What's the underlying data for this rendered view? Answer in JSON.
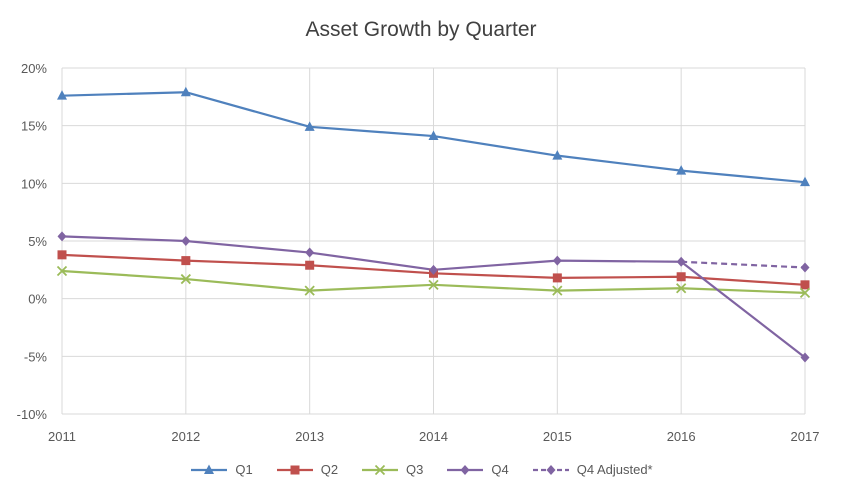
{
  "chart_data": {
    "type": "line",
    "title": "Asset Growth by Quarter",
    "x": [
      "2011",
      "2012",
      "2013",
      "2014",
      "2015",
      "2016",
      "2017"
    ],
    "y_ticks": [
      "20%",
      "15%",
      "10%",
      "5%",
      "0%",
      "-5%",
      "-10%"
    ],
    "ylim": [
      -10,
      20
    ],
    "y_unit": "%",
    "grid": "horizontal and vertical",
    "legend_position": "bottom",
    "series": [
      {
        "name": "Q1",
        "color": "#4F81BD",
        "marker": "triangle",
        "dashed": false,
        "values": [
          17.6,
          17.9,
          14.9,
          14.1,
          12.4,
          11.1,
          10.1
        ]
      },
      {
        "name": "Q2",
        "color": "#C0504D",
        "marker": "square",
        "dashed": false,
        "values": [
          3.8,
          3.3,
          2.9,
          2.2,
          1.8,
          1.9,
          1.2
        ]
      },
      {
        "name": "Q3",
        "color": "#9BBB59",
        "marker": "x",
        "dashed": false,
        "values": [
          2.4,
          1.7,
          0.7,
          1.2,
          0.7,
          0.9,
          0.5
        ]
      },
      {
        "name": "Q4",
        "color": "#8064A2",
        "marker": "diamond",
        "dashed": false,
        "values": [
          5.4,
          5.0,
          4.0,
          2.5,
          3.3,
          3.2,
          -5.1
        ]
      },
      {
        "name": "Q4 Adjusted*",
        "color": "#8064A2",
        "marker": "diamond",
        "dashed": true,
        "values": [
          null,
          null,
          null,
          null,
          null,
          3.2,
          2.7
        ]
      }
    ]
  }
}
